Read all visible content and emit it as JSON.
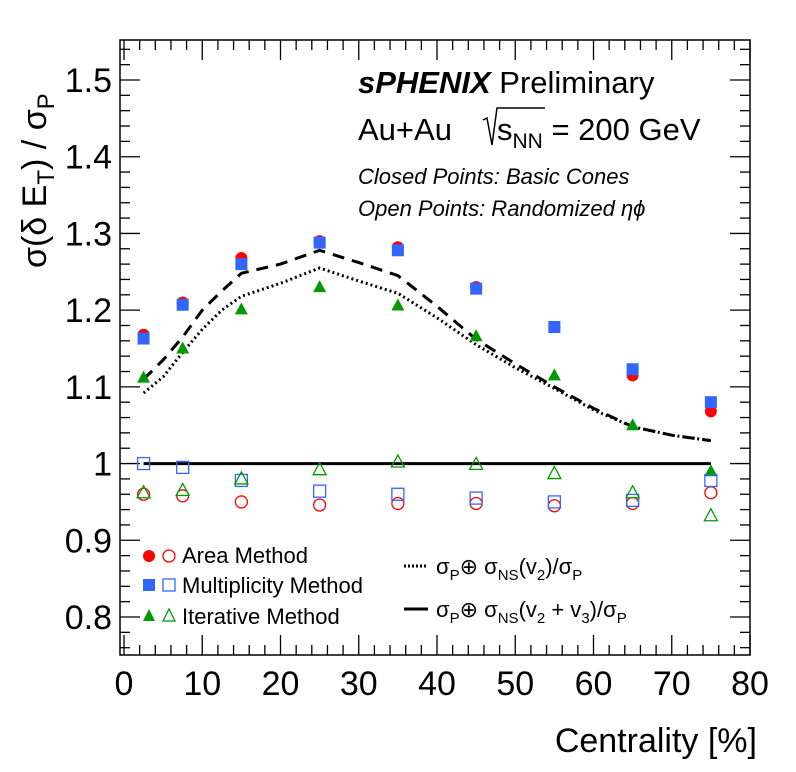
{
  "annotations": {
    "experiment": "sPHENIX",
    "status": "Preliminary",
    "system_prefix": "Au+Au",
    "energy_value": "= 200 GeV",
    "closed_points_note": "Closed Points: Basic Cones",
    "open_points_note": "Open Points: Randomized"
  },
  "colors": {
    "area": "#ff0000",
    "multiplicity": "#3366ff",
    "iterative": "#009900",
    "reference_line": "#000000"
  },
  "chart_data": {
    "type": "scatter",
    "xlabel": "Centrality [%]",
    "ylabel": "σ(δ E_T) / σ_P",
    "xlim": [
      0,
      80
    ],
    "ylim": [
      0.75,
      1.55
    ],
    "x_ticks": [
      "0",
      "10",
      "20",
      "30",
      "40",
      "50",
      "60",
      "70",
      "80"
    ],
    "y_ticks": [
      "0.8",
      "0.9",
      "1",
      "1.1",
      "1.2",
      "1.3",
      "1.4",
      "1.5"
    ],
    "x": [
      2.5,
      7.5,
      15,
      25,
      35,
      45,
      55,
      65,
      75
    ],
    "series": [
      {
        "name": "Area Method",
        "marker": "circle",
        "filled": true,
        "values": [
          1.168,
          1.21,
          1.268,
          1.29,
          1.282,
          1.23,
          1.178,
          1.115,
          1.068
        ]
      },
      {
        "name": "Multiplicity Method",
        "marker": "square",
        "filled": true,
        "values": [
          1.163,
          1.207,
          1.26,
          1.288,
          1.278,
          1.228,
          1.178,
          1.123,
          1.08
        ]
      },
      {
        "name": "Iterative Method",
        "marker": "triangle",
        "filled": true,
        "values": [
          1.112,
          1.15,
          1.201,
          1.23,
          1.206,
          1.166,
          1.115,
          1.05,
          0.99
        ]
      },
      {
        "name": "Area Method",
        "marker": "circle",
        "filled": false,
        "values": [
          0.96,
          0.958,
          0.95,
          0.946,
          0.948,
          0.948,
          0.945,
          0.948,
          0.962
        ]
      },
      {
        "name": "Multiplicity Method",
        "marker": "square",
        "filled": false,
        "values": [
          1.0,
          0.995,
          0.978,
          0.964,
          0.96,
          0.955,
          0.95,
          0.952,
          0.978
        ]
      },
      {
        "name": "Iterative Method",
        "marker": "triangle",
        "filled": false,
        "values": [
          0.962,
          0.965,
          0.98,
          0.992,
          1.002,
          0.999,
          0.987,
          0.962,
          0.932
        ]
      }
    ],
    "reference_line": {
      "y": 1.0,
      "x_range": [
        2.5,
        75
      ]
    },
    "curves": [
      {
        "name": "σP⊕σNS(v2)/σP",
        "style": "dotted",
        "x": [
          2.5,
          5,
          7.5,
          10,
          12.5,
          15,
          20,
          25,
          30,
          35,
          40,
          45,
          50,
          55,
          60,
          65,
          70,
          75
        ],
        "y": [
          1.092,
          1.113,
          1.145,
          1.175,
          1.2,
          1.218,
          1.235,
          1.255,
          1.238,
          1.222,
          1.19,
          1.155,
          1.125,
          1.098,
          1.07,
          1.048,
          1.037,
          1.03
        ]
      },
      {
        "name": "σP⊕σNS(v2 + v3)/σP",
        "style": "dashed",
        "x": [
          2.5,
          5,
          7.5,
          10,
          12.5,
          15,
          20,
          25,
          30,
          35,
          40,
          45,
          50,
          55,
          60,
          65,
          70,
          75
        ],
        "y": [
          1.11,
          1.135,
          1.165,
          1.2,
          1.225,
          1.248,
          1.26,
          1.278,
          1.262,
          1.245,
          1.205,
          1.162,
          1.13,
          1.1,
          1.072,
          1.048,
          1.037,
          1.03
        ]
      }
    ],
    "legend_labels": [
      {
        "text": "Area Method"
      },
      {
        "text": "Multiplicity Method"
      },
      {
        "text": "Iterative Method"
      }
    ],
    "legend_curve_labels": [
      "σP⊕σNS(v2)/σP",
      "σP⊕σNS(v2 + v3)/σP"
    ],
    "legend_placement": "bottom",
    "grid": false
  }
}
